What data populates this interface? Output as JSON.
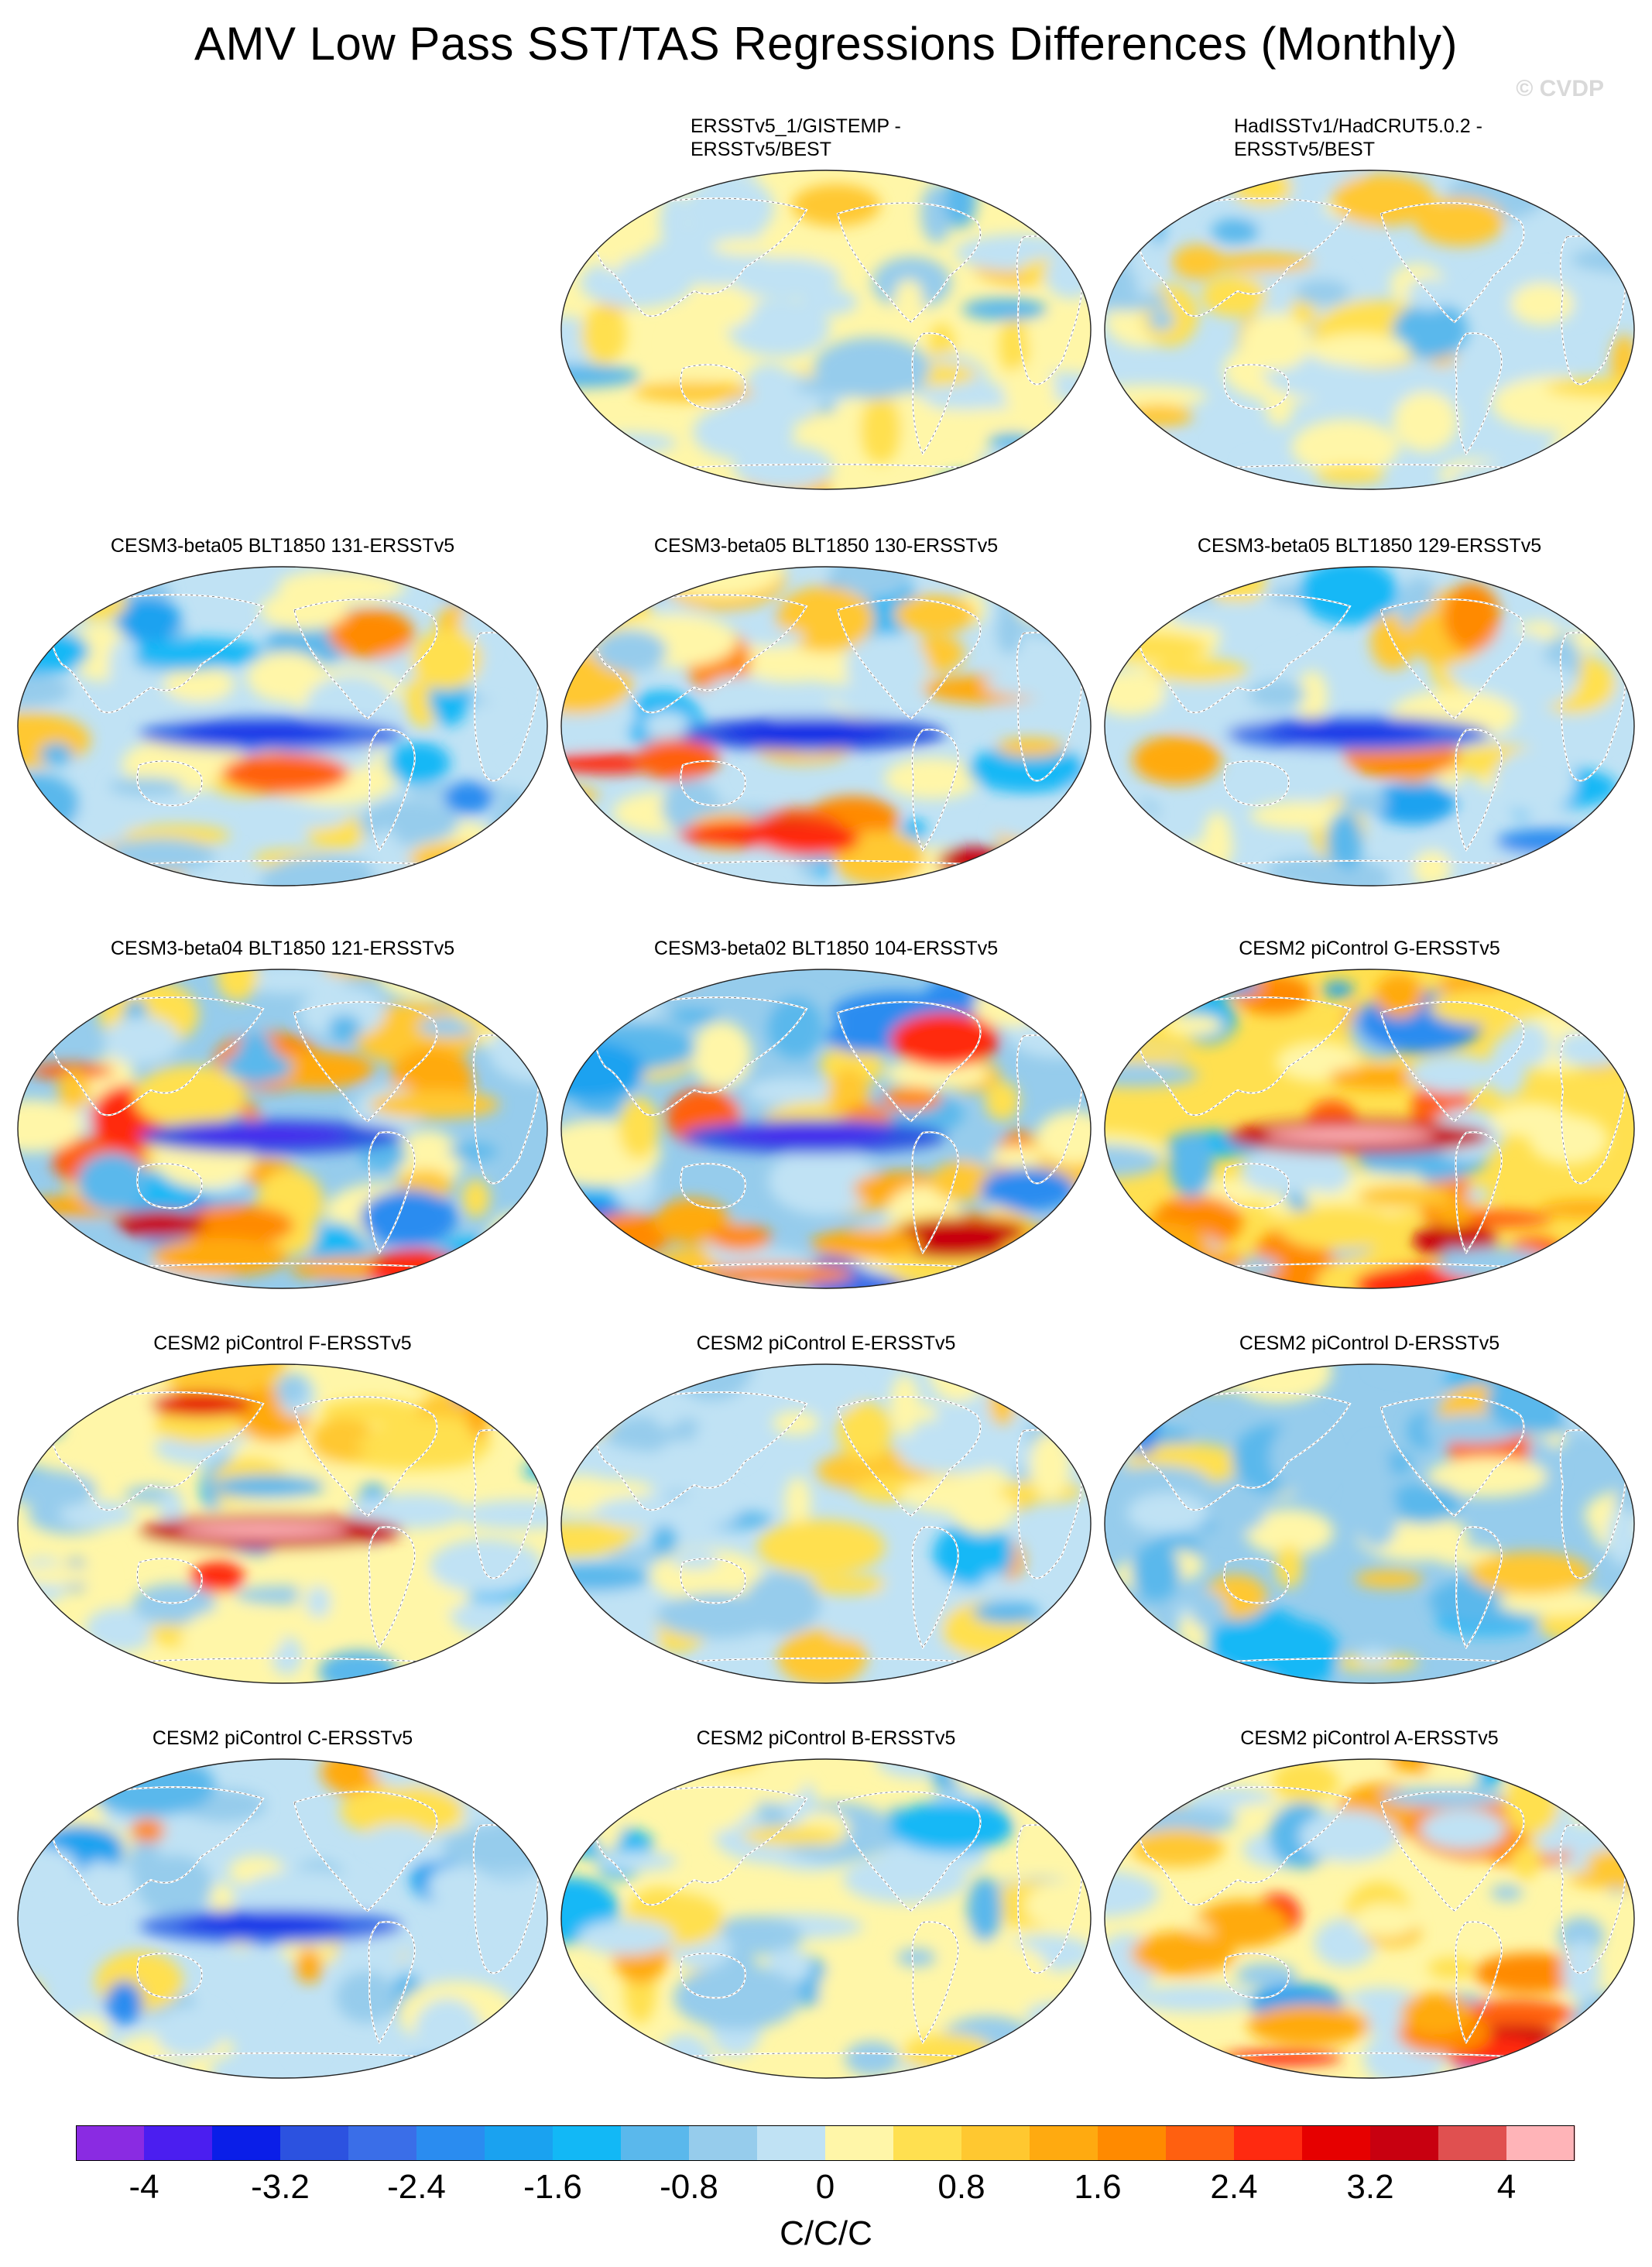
{
  "figure": {
    "title": "AMV Low Pass SST/TAS Regressions Differences (Monthly)",
    "watermark": "© CVDP"
  },
  "panels": [
    {
      "title": "ERSSTv5_1/GISTEMP -\nERSSTv5/BEST",
      "pattern": "weak-mixed"
    },
    {
      "title": "HadISSTv1/HadCRUT5.0.2 -\nERSSTv5/BEST",
      "pattern": "weak-cool"
    },
    {
      "title": "CESM3-beta05 BLT1850 131-ERSSTv5",
      "pattern": "cool-equator"
    },
    {
      "title": "CESM3-beta05 BLT1850 130-ERSSTv5",
      "pattern": "cool-equator-warm-south"
    },
    {
      "title": "CESM3-beta05 BLT1850 129-ERSSTv5",
      "pattern": "cool-equator"
    },
    {
      "title": "CESM3-beta04 BLT1850 121-ERSSTv5",
      "pattern": "strong-cool-equator"
    },
    {
      "title": "CESM3-beta02 BLT1850 104-ERSSTv5",
      "pattern": "strong-cool-equator"
    },
    {
      "title": "CESM2 piControl G-ERSSTv5",
      "pattern": "warm-equator"
    },
    {
      "title": "CESM2 piControl F-ERSSTv5",
      "pattern": "warm-pacific"
    },
    {
      "title": "CESM2 piControl E-ERSSTv5",
      "pattern": "weak-cool"
    },
    {
      "title": "CESM2 piControl D-ERSSTv5",
      "pattern": "cool-mixed"
    },
    {
      "title": "CESM2 piControl C-ERSSTv5",
      "pattern": "cool-equator"
    },
    {
      "title": "CESM2 piControl B-ERSSTv5",
      "pattern": "weak-mixed"
    },
    {
      "title": "CESM2 piControl A-ERSSTv5",
      "pattern": "warm-south"
    }
  ],
  "colorbar": {
    "colors": [
      "#8a2be2",
      "#4b1ef0",
      "#0a1ee8",
      "#2c52e0",
      "#3a6ee8",
      "#2a8cf0",
      "#1aa2f0",
      "#12b8f6",
      "#5ab8ec",
      "#96ccec",
      "#c0e2f4",
      "#fff6a8",
      "#ffe050",
      "#ffc830",
      "#ffaa10",
      "#ff8a00",
      "#ff6010",
      "#ff2a10",
      "#e60000",
      "#c80010",
      "#e05050",
      "#ffb4b8"
    ],
    "labels": [
      "-4",
      "-3.2",
      "-2.4",
      "-1.6",
      "-0.8",
      "0",
      "0.8",
      "1.6",
      "2.4",
      "3.2",
      "4"
    ],
    "units": "C/C/C"
  }
}
